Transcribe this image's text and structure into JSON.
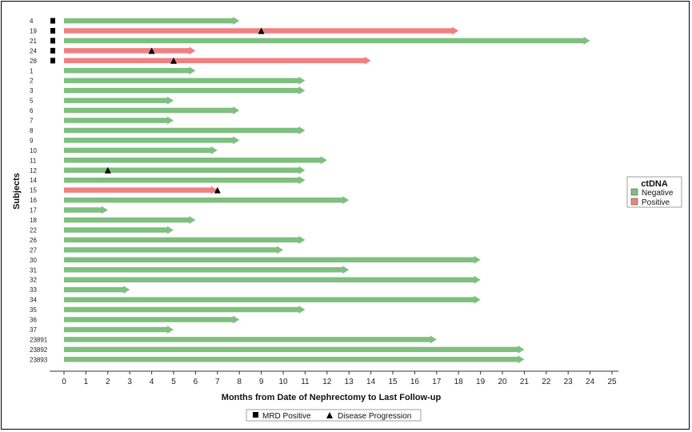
{
  "chart_data": {
    "type": "bar",
    "orientation": "horizontal",
    "xlabel": "Months from Date of Nephrectomy to Last Follow-up",
    "ylabel": "Subjects",
    "xlim": [
      -0.5,
      25
    ],
    "xticks": [
      0,
      1,
      2,
      3,
      4,
      5,
      6,
      7,
      8,
      9,
      10,
      11,
      12,
      13,
      14,
      15,
      16,
      17,
      18,
      19,
      20,
      21,
      22,
      23,
      24,
      25
    ],
    "legend": {
      "title": "ctDNA",
      "placement": "right",
      "entries": [
        {
          "label": "Negative",
          "color": "#7fbf7f"
        },
        {
          "label": "Positive",
          "color": "#f08080"
        }
      ]
    },
    "marker_legend": {
      "placement": "bottom",
      "entries": [
        {
          "label": "MRD Positive",
          "symbol": "square"
        },
        {
          "label": "Disease Progression",
          "symbol": "triangle"
        }
      ]
    },
    "subjects": [
      {
        "id": "4",
        "months": 8,
        "ctdna": "Negative",
        "mrd": true,
        "progression": null
      },
      {
        "id": "19",
        "months": 18,
        "ctdna": "Positive",
        "mrd": true,
        "progression": 9
      },
      {
        "id": "21",
        "months": 24,
        "ctdna": "Negative",
        "mrd": true,
        "progression": null
      },
      {
        "id": "24",
        "months": 6,
        "ctdna": "Positive",
        "mrd": true,
        "progression": 4
      },
      {
        "id": "28",
        "months": 14,
        "ctdna": "Positive",
        "mrd": true,
        "progression": 5
      },
      {
        "id": "1",
        "months": 6,
        "ctdna": "Negative",
        "mrd": false,
        "progression": null
      },
      {
        "id": "2",
        "months": 11,
        "ctdna": "Negative",
        "mrd": false,
        "progression": null
      },
      {
        "id": "3",
        "months": 11,
        "ctdna": "Negative",
        "mrd": false,
        "progression": null
      },
      {
        "id": "5",
        "months": 5,
        "ctdna": "Negative",
        "mrd": false,
        "progression": null
      },
      {
        "id": "6",
        "months": 8,
        "ctdna": "Negative",
        "mrd": false,
        "progression": null
      },
      {
        "id": "7",
        "months": 5,
        "ctdna": "Negative",
        "mrd": false,
        "progression": null
      },
      {
        "id": "8",
        "months": 11,
        "ctdna": "Negative",
        "mrd": false,
        "progression": null
      },
      {
        "id": "9",
        "months": 8,
        "ctdna": "Negative",
        "mrd": false,
        "progression": null
      },
      {
        "id": "10",
        "months": 7,
        "ctdna": "Negative",
        "mrd": false,
        "progression": null
      },
      {
        "id": "11",
        "months": 12,
        "ctdna": "Negative",
        "mrd": false,
        "progression": null
      },
      {
        "id": "12",
        "months": 11,
        "ctdna": "Negative",
        "mrd": false,
        "progression": 2
      },
      {
        "id": "14",
        "months": 11,
        "ctdna": "Negative",
        "mrd": false,
        "progression": null
      },
      {
        "id": "15",
        "months": 7,
        "ctdna": "Positive",
        "mrd": false,
        "progression": 7
      },
      {
        "id": "16",
        "months": 13,
        "ctdna": "Negative",
        "mrd": false,
        "progression": null
      },
      {
        "id": "17",
        "months": 2,
        "ctdna": "Negative",
        "mrd": false,
        "progression": null
      },
      {
        "id": "18",
        "months": 6,
        "ctdna": "Negative",
        "mrd": false,
        "progression": null
      },
      {
        "id": "22",
        "months": 5,
        "ctdna": "Negative",
        "mrd": false,
        "progression": null
      },
      {
        "id": "26",
        "months": 11,
        "ctdna": "Negative",
        "mrd": false,
        "progression": null
      },
      {
        "id": "27",
        "months": 10,
        "ctdna": "Negative",
        "mrd": false,
        "progression": null
      },
      {
        "id": "30",
        "months": 19,
        "ctdna": "Negative",
        "mrd": false,
        "progression": null
      },
      {
        "id": "31",
        "months": 13,
        "ctdna": "Negative",
        "mrd": false,
        "progression": null
      },
      {
        "id": "32",
        "months": 19,
        "ctdna": "Negative",
        "mrd": false,
        "progression": null
      },
      {
        "id": "33",
        "months": 3,
        "ctdna": "Negative",
        "mrd": false,
        "progression": null
      },
      {
        "id": "34",
        "months": 19,
        "ctdna": "Negative",
        "mrd": false,
        "progression": null
      },
      {
        "id": "35",
        "months": 11,
        "ctdna": "Negative",
        "mrd": false,
        "progression": null
      },
      {
        "id": "36",
        "months": 8,
        "ctdna": "Negative",
        "mrd": false,
        "progression": null
      },
      {
        "id": "37",
        "months": 5,
        "ctdna": "Negative",
        "mrd": false,
        "progression": null
      },
      {
        "id": "23891",
        "months": 17,
        "ctdna": "Negative",
        "mrd": false,
        "progression": null
      },
      {
        "id": "23892",
        "months": 21,
        "ctdna": "Negative",
        "mrd": false,
        "progression": null
      },
      {
        "id": "23893",
        "months": 21,
        "ctdna": "Negative",
        "mrd": false,
        "progression": null
      }
    ]
  }
}
